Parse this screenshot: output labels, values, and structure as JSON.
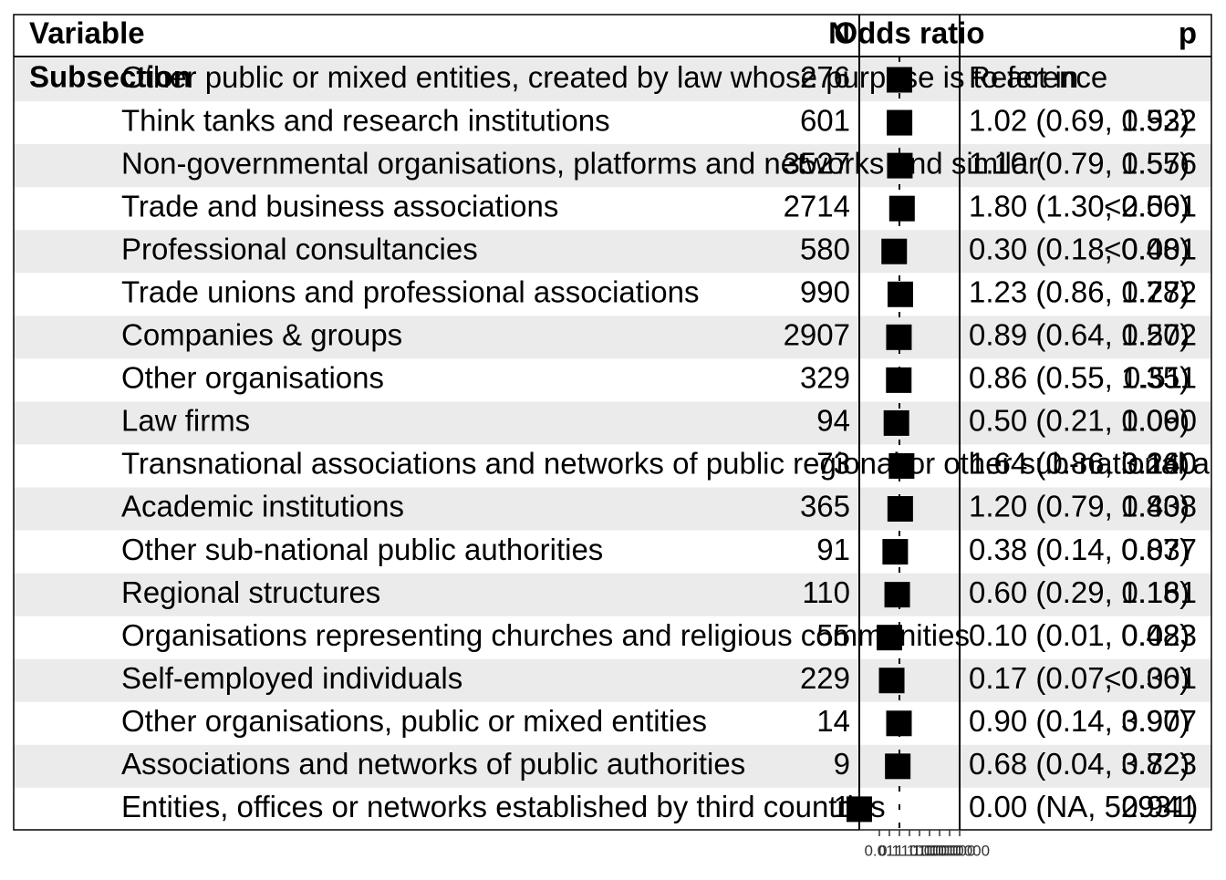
{
  "chart_data": {
    "type": "forest",
    "columns": [
      "Variable",
      "N",
      "Odds ratio",
      "p"
    ],
    "section": "Subsection",
    "rows": [
      {
        "label": "Other public or mixed entities, created by law whose purpose is to act in",
        "n": 276,
        "estimate": 1,
        "or_text": "Reference",
        "p": null
      },
      {
        "label": "Think tanks and research institutions",
        "n": 601,
        "estimate": 1.02,
        "or_text": "1.02 (0.69, 1.52)",
        "p": "0.932"
      },
      {
        "label": "Non-governmental organisations, platforms and networks and similar",
        "n": 3527,
        "estimate": 1.1,
        "or_text": "1.10 (0.79, 1.55)",
        "p": "0.576"
      },
      {
        "label": "Trade and business associations",
        "n": 2714,
        "estimate": 1.8,
        "or_text": "1.80 (1.30, 2.56)",
        "p": "<0.001"
      },
      {
        "label": "Professional consultancies",
        "n": 580,
        "estimate": 0.3,
        "or_text": "0.30 (0.18, 0.48)",
        "p": "<0.001"
      },
      {
        "label": "Trade unions and professional associations",
        "n": 990,
        "estimate": 1.23,
        "or_text": "1.23 (0.86, 1.78)",
        "p": "0.272"
      },
      {
        "label": "Companies & groups",
        "n": 2907,
        "estimate": 0.89,
        "or_text": "0.89 (0.64, 1.27)",
        "p": "0.502"
      },
      {
        "label": "Other organisations",
        "n": 329,
        "estimate": 0.86,
        "or_text": "0.86 (0.55, 1.35)",
        "p": "0.511"
      },
      {
        "label": "Law firms",
        "n": 94,
        "estimate": 0.5,
        "or_text": "0.50 (0.21, 1.06)",
        "p": "0.090"
      },
      {
        "label": "Transnational associations and networks of public regional or other sub-national authorities",
        "n": 73,
        "estimate": 1.64,
        "or_text": "1.64 (0.86, 3.26)",
        "p": "0.140"
      },
      {
        "label": "Academic institutions",
        "n": 365,
        "estimate": 1.2,
        "or_text": "1.20 (0.79, 1.83)",
        "p": "0.408"
      },
      {
        "label": "Other sub-national public authorities",
        "n": 91,
        "estimate": 0.38,
        "or_text": "0.38 (0.14, 0.87)",
        "p": "0.037"
      },
      {
        "label": "Regional structures",
        "n": 110,
        "estimate": 0.6,
        "or_text": "0.60 (0.29, 1.18)",
        "p": "0.161"
      },
      {
        "label": "Organisations representing churches and religious communities",
        "n": 55,
        "estimate": 0.1,
        "or_text": "0.10 (0.01, 0.48)",
        "p": "0.023"
      },
      {
        "label": "Self-employed individuals",
        "n": 229,
        "estimate": 0.17,
        "or_text": "0.17 (0.07, 0.36)",
        "p": "<0.001"
      },
      {
        "label": "Other organisations, public or mixed entities",
        "n": 14,
        "estimate": 0.9,
        "or_text": "0.90 (0.14, 3.97)",
        "p": "0.907"
      },
      {
        "label": "Associations and networks of public authorities",
        "n": 9,
        "estimate": 0.68,
        "or_text": "0.68 (0.04, 3.82)",
        "p": "0.723"
      },
      {
        "label": "Entities, offices or networks established by third countries",
        "n": 1,
        "estimate": 0.0001,
        "or_text": "0.00 (NA, 52931)",
        "p": "0.941"
      }
    ],
    "log_scale": true,
    "xlim": [
      0.0001,
      1000000
    ],
    "xticks": [
      0.01,
      0.1,
      1,
      10,
      100,
      1000,
      10000,
      100000,
      1000000
    ],
    "reference_value": 1,
    "box_color": "#000000",
    "stripe_color": "#ebebeb"
  }
}
